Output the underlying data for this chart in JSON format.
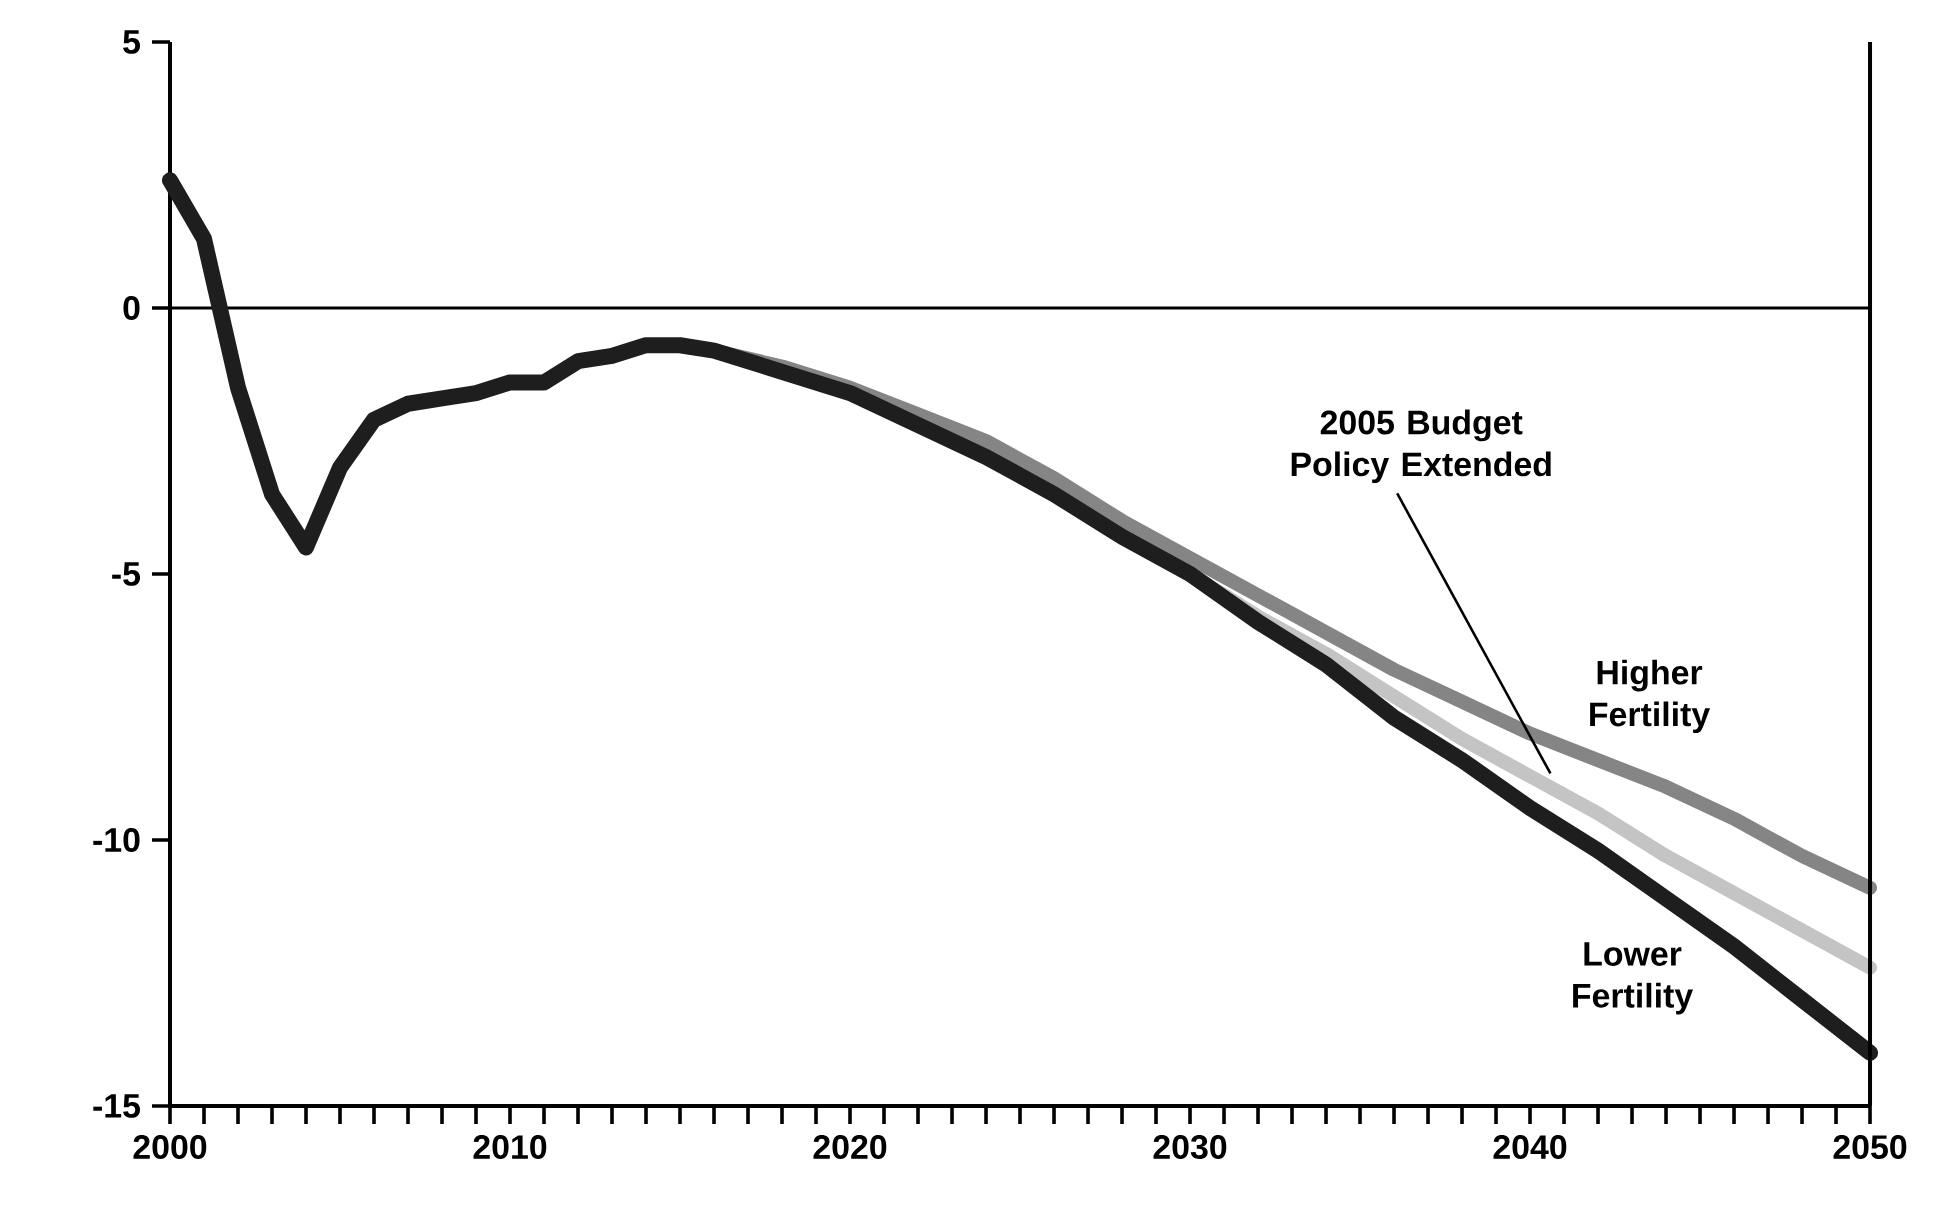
{
  "chart_data": {
    "type": "line",
    "xlim": [
      2000,
      2050
    ],
    "ylim": [
      -15,
      5
    ],
    "xticks": [
      2000,
      {
        "value": 2001,
        "label": null
      },
      {
        "value": 2002,
        "label": null
      },
      {
        "value": 2003,
        "label": null
      },
      {
        "value": 2004,
        "label": null
      },
      {
        "value": 2005,
        "label": null
      },
      {
        "value": 2006,
        "label": null
      },
      {
        "value": 2007,
        "label": null
      },
      {
        "value": 2008,
        "label": null
      },
      {
        "value": 2009,
        "label": null
      },
      2010,
      {
        "value": 2011,
        "label": null
      },
      {
        "value": 2012,
        "label": null
      },
      {
        "value": 2013,
        "label": null
      },
      {
        "value": 2014,
        "label": null
      },
      {
        "value": 2015,
        "label": null
      },
      {
        "value": 2016,
        "label": null
      },
      {
        "value": 2017,
        "label": null
      },
      {
        "value": 2018,
        "label": null
      },
      {
        "value": 2019,
        "label": null
      },
      2020,
      {
        "value": 2021,
        "label": null
      },
      {
        "value": 2022,
        "label": null
      },
      {
        "value": 2023,
        "label": null
      },
      {
        "value": 2024,
        "label": null
      },
      {
        "value": 2025,
        "label": null
      },
      {
        "value": 2026,
        "label": null
      },
      {
        "value": 2027,
        "label": null
      },
      {
        "value": 2028,
        "label": null
      },
      {
        "value": 2029,
        "label": null
      },
      2030,
      {
        "value": 2031,
        "label": null
      },
      {
        "value": 2032,
        "label": null
      },
      {
        "value": 2033,
        "label": null
      },
      {
        "value": 2034,
        "label": null
      },
      {
        "value": 2035,
        "label": null
      },
      {
        "value": 2036,
        "label": null
      },
      {
        "value": 2037,
        "label": null
      },
      {
        "value": 2038,
        "label": null
      },
      {
        "value": 2039,
        "label": null
      },
      2040,
      {
        "value": 2041,
        "label": null
      },
      {
        "value": 2042,
        "label": null
      },
      {
        "value": 2043,
        "label": null
      },
      {
        "value": 2044,
        "label": null
      },
      {
        "value": 2045,
        "label": null
      },
      {
        "value": 2046,
        "label": null
      },
      {
        "value": 2047,
        "label": null
      },
      {
        "value": 2048,
        "label": null
      },
      {
        "value": 2049,
        "label": null
      },
      2050
    ],
    "yticks": [
      5,
      0,
      -5,
      -10,
      -15
    ],
    "ref_lines": [
      {
        "axis": "y",
        "value": 0,
        "color": "#000000"
      }
    ],
    "series": [
      {
        "name": "Higher Fertility",
        "color": "#858585",
        "x": [
          2015,
          2016,
          2018,
          2020,
          2022,
          2024,
          2026,
          2028,
          2030,
          2032,
          2034,
          2036,
          2038,
          2040,
          2042,
          2044,
          2046,
          2048,
          2050
        ],
        "values": [
          -0.7,
          -0.8,
          -1.1,
          -1.5,
          -2.0,
          -2.5,
          -3.2,
          -4.0,
          -4.7,
          -5.4,
          -6.1,
          -6.8,
          -7.4,
          -8.0,
          -8.5,
          -9.0,
          -9.6,
          -10.3,
          -10.9
        ]
      },
      {
        "name": "2005 Budget Policy Extended",
        "color": "#c4c4c4",
        "x": [
          2028,
          2030,
          2032,
          2034,
          2036,
          2038,
          2040,
          2042,
          2044,
          2046,
          2048,
          2050
        ],
        "values": [
          -4.3,
          -5.0,
          -5.8,
          -6.5,
          -7.3,
          -8.1,
          -8.8,
          -9.5,
          -10.3,
          -11.0,
          -11.7,
          -12.4
        ]
      },
      {
        "name": "Lower Fertility",
        "color": "#1e1e1e",
        "x": [
          2000,
          2001,
          2002,
          2003,
          2004,
          2005,
          2006,
          2007,
          2008,
          2009,
          2010,
          2011,
          2012,
          2013,
          2014,
          2015,
          2016,
          2018,
          2020,
          2022,
          2024,
          2026,
          2028,
          2030,
          2032,
          2034,
          2036,
          2038,
          2040,
          2042,
          2044,
          2046,
          2048,
          2050
        ],
        "values": [
          2.4,
          1.3,
          -1.5,
          -3.5,
          -4.5,
          -3.0,
          -2.1,
          -1.8,
          -1.7,
          -1.6,
          -1.4,
          -1.4,
          -1.0,
          -0.9,
          -0.7,
          -0.7,
          -0.8,
          -1.2,
          -1.6,
          -2.2,
          -2.8,
          -3.5,
          -4.3,
          -5.0,
          -5.9,
          -6.7,
          -7.7,
          -8.5,
          -9.4,
          -10.2,
          -11.1,
          -12.0,
          -13.0,
          -14.0
        ]
      }
    ]
  }
}
